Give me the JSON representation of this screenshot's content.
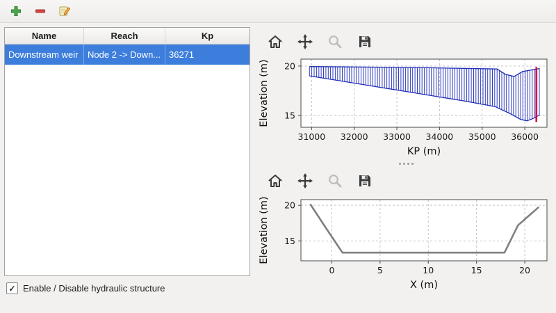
{
  "window": {
    "background": "#f2f1ef"
  },
  "main_toolbar": {
    "icons": [
      {
        "name": "add-icon",
        "glyph": "plus",
        "color": "#4aa84a"
      },
      {
        "name": "remove-icon",
        "glyph": "minus",
        "color": "#d64541"
      },
      {
        "name": "edit-icon",
        "glyph": "edit-note",
        "color": "#f2a33c"
      }
    ]
  },
  "table": {
    "columns": [
      "Name",
      "Reach",
      "Kp"
    ],
    "rows": [
      {
        "name": "Downstream weir",
        "reach": "Node 2 -> Down...",
        "kp": "36271",
        "selected": true
      }
    ],
    "selection_color": "#3d7edd"
  },
  "checkbox": {
    "label": "Enable / Disable hydraulic structure",
    "checked": true,
    "check_glyph": "✓"
  },
  "plot_toolbar": {
    "icons": [
      "home",
      "pan",
      "zoom",
      "save"
    ],
    "icon_color": "#3a3a3a",
    "disabled_color": "#bcbcbc"
  },
  "chart_data": [
    {
      "type": "area",
      "subtype": "hatched-band-longitudinal-profile",
      "xlabel": "KP (m)",
      "ylabel": "Elevation (m)",
      "xlim": [
        30750,
        36520
      ],
      "ylim": [
        13.8,
        20.7
      ],
      "xticks": [
        31000,
        32000,
        33000,
        34000,
        35000,
        36000
      ],
      "yticks": [
        15,
        20
      ],
      "grid": true,
      "upper": [
        [
          30950,
          19.95
        ],
        [
          33500,
          19.85
        ],
        [
          35350,
          19.7
        ],
        [
          35550,
          19.15
        ],
        [
          35750,
          18.95
        ],
        [
          35950,
          19.45
        ],
        [
          36350,
          19.75
        ]
      ],
      "lower": [
        [
          30950,
          19.0
        ],
        [
          31600,
          18.55
        ],
        [
          32600,
          17.85
        ],
        [
          33600,
          17.15
        ],
        [
          34600,
          16.45
        ],
        [
          35300,
          15.9
        ],
        [
          35650,
          15.2
        ],
        [
          35900,
          14.6
        ],
        [
          36050,
          14.45
        ],
        [
          36200,
          14.7
        ],
        [
          36350,
          15.05
        ]
      ],
      "hatch_step": 55,
      "hatch_range": [
        30950,
        36350
      ],
      "color": "#2f3cc0",
      "outline_color": "#1e2bb8",
      "marker_x": 36271,
      "marker_y": [
        14.35,
        19.9
      ],
      "marker_color": "#d6003c"
    },
    {
      "type": "line",
      "subtype": "cross-section",
      "xlabel": "X (m)",
      "ylabel": "Elevation (m)",
      "xlim": [
        -3.2,
        22.3
      ],
      "ylim": [
        12.2,
        20.8
      ],
      "xticks": [
        0,
        5,
        10,
        15,
        20
      ],
      "yticks": [
        15,
        20
      ],
      "grid": true,
      "points": [
        [
          -2.2,
          20.1
        ],
        [
          -0.7,
          17.0
        ],
        [
          1.1,
          13.35
        ],
        [
          17.9,
          13.35
        ],
        [
          19.3,
          17.2
        ],
        [
          21.4,
          19.7
        ]
      ],
      "color": "#7f7f7f"
    }
  ]
}
